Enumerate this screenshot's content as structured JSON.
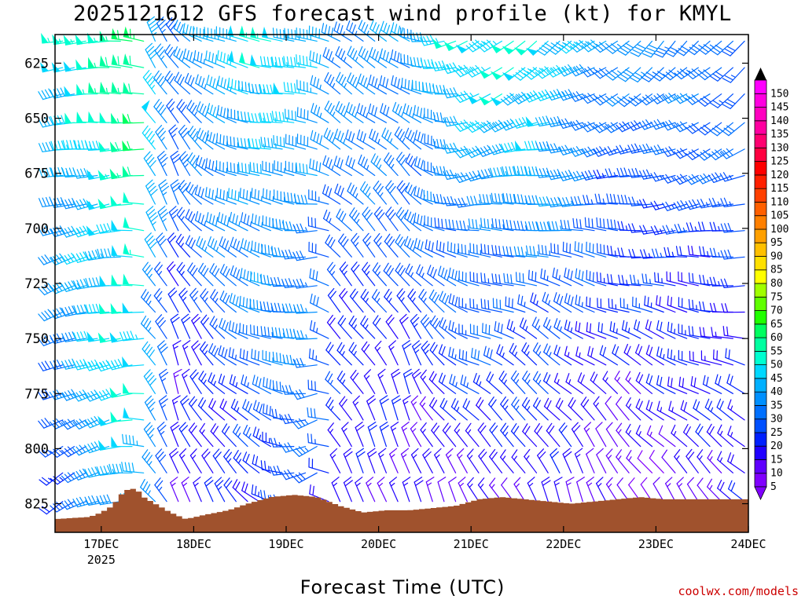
{
  "chart_data": {
    "type": "wind-barb-time-height",
    "title": "2025121612 GFS forecast wind profile (kt) for KMYL",
    "xlabel": "Forecast Time (UTC)",
    "credit": "coolwx.com/models",
    "x_ticks": [
      "17DEC",
      "18DEC",
      "19DEC",
      "20DEC",
      "21DEC",
      "22DEC",
      "23DEC",
      "24DEC"
    ],
    "x_year_label": "2025",
    "x_range_hours": [
      -12,
      168
    ],
    "y_ticks": [
      625,
      650,
      675,
      700,
      725,
      750,
      775,
      800,
      825
    ],
    "y_range_mb": [
      612,
      838
    ],
    "colorbar_labels": [
      5,
      10,
      15,
      20,
      25,
      30,
      35,
      40,
      45,
      50,
      55,
      60,
      65,
      70,
      75,
      80,
      85,
      90,
      95,
      100,
      105,
      110,
      115,
      120,
      125,
      130,
      135,
      140,
      145,
      150
    ],
    "colorbar_colors": [
      "#8000ff",
      "#6000ff",
      "#2000ff",
      "#0020ff",
      "#0050ff",
      "#0070ff",
      "#0090ff",
      "#00b0ff",
      "#00d8ff",
      "#00ffd0",
      "#00ffa0",
      "#00ff60",
      "#20ff00",
      "#60ff00",
      "#a0ff00",
      "#ffff00",
      "#ffe000",
      "#ffc000",
      "#ffa000",
      "#ff8000",
      "#ff6000",
      "#ff4000",
      "#ff2000",
      "#ff0000",
      "#ff0040",
      "#ff0070",
      "#ff00a0",
      "#ff00c0",
      "#ff00e0",
      "#ff00ff"
    ],
    "terrain_color": "#a0522d",
    "levels_mb": [
      615,
      627,
      639,
      652,
      664,
      676,
      689,
      701,
      713,
      726,
      738,
      750,
      762,
      775,
      787,
      799,
      811,
      824,
      836
    ],
    "times_hours": [
      -10,
      -7,
      -4,
      -1,
      2,
      5,
      8,
      11,
      14,
      17,
      20,
      23,
      26,
      29,
      32,
      35,
      38,
      41,
      44,
      47,
      50,
      53,
      56,
      59,
      62,
      65,
      68,
      71,
      74,
      77,
      80,
      83,
      86,
      89,
      92,
      95,
      98,
      101,
      104,
      107,
      110,
      113,
      116,
      119,
      122,
      125,
      128,
      131,
      134,
      137,
      140,
      143,
      146,
      149,
      152,
      155,
      158,
      161,
      164,
      167
    ],
    "wind_keyframes": [
      {
        "t": -12,
        "upper": {
          "speed": 48,
          "dir": 265
        },
        "lower": {
          "speed": 20,
          "dir": 235
        }
      },
      {
        "t": 6,
        "upper": {
          "speed": 55,
          "dir": 270
        },
        "lower": {
          "speed": 45,
          "dir": 255
        }
      },
      {
        "t": 11,
        "upper": {
          "speed": 62,
          "dir": 275
        },
        "lower": {
          "speed": 42,
          "dir": 270
        }
      },
      {
        "t": 14,
        "upper": {
          "speed": 46,
          "dir": 330
        },
        "lower": {
          "speed": 34,
          "dir": 320
        }
      },
      {
        "t": 20,
        "upper": {
          "speed": 32,
          "dir": 325
        },
        "lower": {
          "speed": 12,
          "dir": 345
        }
      },
      {
        "t": 30,
        "upper": {
          "speed": 44,
          "dir": 290
        },
        "lower": {
          "speed": 16,
          "dir": 330
        }
      },
      {
        "t": 44,
        "upper": {
          "speed": 50,
          "dir": 275
        },
        "lower": {
          "speed": 22,
          "dir": 300
        }
      },
      {
        "t": 56,
        "upper": {
          "speed": 42,
          "dir": 290
        },
        "lower": {
          "speed": 28,
          "dir": 240
        }
      },
      {
        "t": 62,
        "upper": {
          "speed": 38,
          "dir": 300
        },
        "lower": {
          "speed": 14,
          "dir": 330
        }
      },
      {
        "t": 80,
        "upper": {
          "speed": 40,
          "dir": 300
        },
        "lower": {
          "speed": 12,
          "dir": 350
        }
      },
      {
        "t": 98,
        "upper": {
          "speed": 48,
          "dir": 230
        },
        "lower": {
          "speed": 14,
          "dir": 330
        }
      },
      {
        "t": 116,
        "upper": {
          "speed": 52,
          "dir": 235
        },
        "lower": {
          "speed": 12,
          "dir": 345
        }
      },
      {
        "t": 135,
        "upper": {
          "speed": 36,
          "dir": 230
        },
        "lower": {
          "speed": 10,
          "dir": 340
        }
      },
      {
        "t": 150,
        "upper": {
          "speed": 34,
          "dir": 225
        },
        "lower": {
          "speed": 12,
          "dir": 330
        }
      },
      {
        "t": 170,
        "upper": {
          "speed": 32,
          "dir": 220
        },
        "lower": {
          "speed": 15,
          "dir": 320
        }
      }
    ],
    "terrain_surface_mb": [
      [
        -12,
        832
      ],
      [
        -3,
        831
      ],
      [
        0,
        829
      ],
      [
        3,
        826
      ],
      [
        6,
        819
      ],
      [
        9,
        818
      ],
      [
        11,
        822
      ],
      [
        14,
        825
      ],
      [
        18,
        829
      ],
      [
        22,
        832
      ],
      [
        27,
        830
      ],
      [
        33,
        828
      ],
      [
        38,
        825
      ],
      [
        44,
        822
      ],
      [
        50,
        821
      ],
      [
        56,
        822
      ],
      [
        62,
        826
      ],
      [
        68,
        829
      ],
      [
        74,
        828
      ],
      [
        80,
        828
      ],
      [
        86,
        827
      ],
      [
        92,
        826
      ],
      [
        98,
        823
      ],
      [
        104,
        822
      ],
      [
        110,
        823
      ],
      [
        116,
        824
      ],
      [
        122,
        825
      ],
      [
        128,
        824
      ],
      [
        134,
        823
      ],
      [
        140,
        822
      ],
      [
        146,
        823
      ],
      [
        152,
        823
      ],
      [
        158,
        823
      ],
      [
        168,
        823
      ]
    ]
  }
}
